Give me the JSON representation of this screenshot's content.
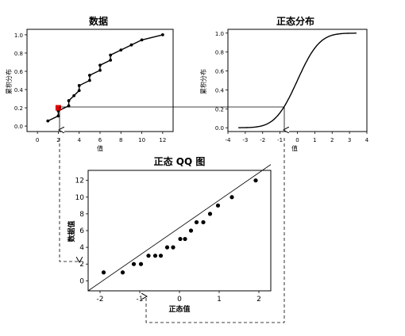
{
  "chart_data": [
    {
      "type": "line",
      "title": "数据",
      "xlabel": "值",
      "ylabel": "累积分布",
      "x_ticks": [
        0,
        2,
        4,
        6,
        8,
        10,
        12
      ],
      "y_ticks": [
        "0.0",
        "0.2",
        "0.4",
        "0.6",
        "0.8",
        "1.0"
      ],
      "xlim": [
        -1,
        13
      ],
      "ylim": [
        -0.06,
        1.06
      ],
      "series": [
        {
          "x": [
            1,
            2,
            2,
            3,
            3,
            3.5,
            4,
            4,
            5,
            5,
            6,
            6,
            7,
            7,
            8,
            9,
            10,
            12
          ],
          "y": [
            0.056,
            0.111,
            0.167,
            0.222,
            0.278,
            0.333,
            0.389,
            0.444,
            0.5,
            0.556,
            0.611,
            0.667,
            0.722,
            0.778,
            0.833,
            0.889,
            0.944,
            1.0
          ]
        }
      ],
      "highlight_point": {
        "x": 2,
        "y": 0.2,
        "color": "#e00000"
      }
    },
    {
      "type": "line",
      "title": "正态分布",
      "xlabel": "值",
      "ylabel": "累积分布",
      "x_ticks": [
        -4,
        -3,
        -2,
        -1,
        0,
        1,
        2,
        3,
        4
      ],
      "y_ticks": [
        "0.0",
        "0.2",
        "0.4",
        "0.6",
        "0.8",
        "1.0"
      ],
      "xlim": [
        -4,
        4
      ],
      "ylim": [
        -0.04,
        1.04
      ],
      "curve": "normal_cdf",
      "curve_range": [
        -3.4,
        3.4
      ]
    },
    {
      "type": "scatter",
      "title": "正态 QQ 图",
      "xlabel": "正态值",
      "ylabel": "数据值",
      "x_ticks": [
        -2,
        -1,
        0,
        1,
        2
      ],
      "y_ticks": [
        0,
        2,
        4,
        6,
        8,
        10,
        12
      ],
      "xlim": [
        -2.3,
        2.3
      ],
      "ylim": [
        -1.2,
        13.2
      ],
      "points": {
        "x": [
          -1.91,
          -1.43,
          -1.15,
          -0.97,
          -0.78,
          -0.61,
          -0.47,
          -0.31,
          -0.16,
          0.02,
          0.14,
          0.29,
          0.43,
          0.6,
          0.77,
          0.97,
          1.32,
          1.92
        ],
        "y": [
          1,
          1,
          2,
          2,
          3,
          3,
          3,
          4,
          4,
          5,
          5,
          6,
          7,
          7,
          8,
          9,
          10,
          12
        ]
      },
      "reference_line": {
        "x": [
          -2.3,
          2.3
        ],
        "y": [
          -1.2,
          13.9
        ]
      }
    }
  ]
}
